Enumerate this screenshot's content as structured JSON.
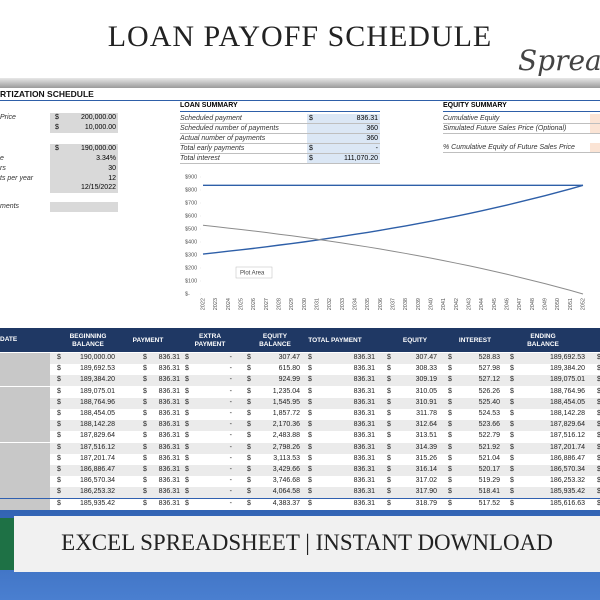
{
  "header": {
    "title": "LOAN PAYOFF SCHEDULE",
    "script": "Spread"
  },
  "section_title": "RTIZATION SCHEDULE",
  "currency": "$",
  "inputs": [
    {
      "label": "Price",
      "currency": true,
      "value": "200,000.00"
    },
    {
      "currency": true,
      "value": "10,000.00"
    },
    {
      "currency": true,
      "value": "190,000.00"
    },
    {
      "label": "e",
      "value": "3.34%"
    },
    {
      "label": "rs",
      "value": "30"
    },
    {
      "label": "ts per year",
      "value": "12"
    },
    {
      "value": "12/15/2022"
    },
    {
      "label": "ments"
    }
  ],
  "loan_summary": {
    "title": "LOAN SUMMARY",
    "rows": [
      {
        "label": "Scheduled payment",
        "currency": true,
        "value": "836.31"
      },
      {
        "label": "Scheduled number of payments",
        "value": "360"
      },
      {
        "label": "Actual number of payments",
        "value": "360"
      },
      {
        "label": "Total early payments",
        "currency": true,
        "value": "-"
      },
      {
        "label": "Total interest",
        "currency": true,
        "value": "111,070.20"
      }
    ]
  },
  "equity_summary": {
    "title": "EQUITY SUMMARY",
    "rows": [
      {
        "label": "Cumulative Equity"
      },
      {
        "label": "Simulated Future Sales Price (Optional)"
      },
      {
        "label": "% Cumulative Equity of Future Sales Price"
      }
    ]
  },
  "chart_data": {
    "type": "line",
    "annotation": "Plot Area",
    "categories": [
      "2022",
      "2023",
      "2024",
      "2025",
      "2026",
      "2027",
      "2028",
      "2029",
      "2030",
      "2031",
      "2032",
      "2033",
      "2034",
      "2035",
      "2036",
      "2037",
      "2038",
      "2039",
      "2040",
      "2041",
      "2042",
      "2043",
      "2044",
      "2045",
      "2046",
      "2047",
      "2048",
      "2049",
      "2050",
      "2051",
      "2052"
    ],
    "ylim": [
      0,
      900
    ],
    "yticks": [
      {
        "value": 0,
        "label": "$-"
      },
      {
        "value": 100,
        "label": "$100"
      },
      {
        "value": 200,
        "label": "$200"
      },
      {
        "value": 300,
        "label": "$300"
      },
      {
        "value": 400,
        "label": "$400"
      },
      {
        "value": 500,
        "label": "$500"
      },
      {
        "value": 600,
        "label": "$600"
      },
      {
        "value": 700,
        "label": "$700"
      },
      {
        "value": 800,
        "label": "$800"
      },
      {
        "value": 900,
        "label": "$900"
      }
    ],
    "series": [
      {
        "color": "#2e5fa8",
        "values": [
          836,
          836,
          836,
          836,
          836,
          836,
          836,
          836,
          836,
          836,
          836,
          836,
          836,
          836,
          836,
          836,
          836,
          836,
          836,
          836,
          836,
          836,
          836,
          836,
          836,
          836,
          836,
          836,
          836,
          836,
          836
        ]
      },
      {
        "color": "#2e5fa8",
        "values": [
          307,
          318,
          329,
          340,
          351,
          363,
          376,
          388,
          401,
          415,
          429,
          444,
          459,
          474,
          490,
          507,
          524,
          542,
          560,
          579,
          599,
          619,
          640,
          662,
          684,
          708,
          732,
          756,
          782,
          808,
          836
        ]
      },
      {
        "color": "#8c8c8c",
        "values": [
          529,
          518,
          507,
          496,
          485,
          473,
          460,
          448,
          435,
          421,
          407,
          392,
          377,
          362,
          346,
          329,
          312,
          294,
          276,
          257,
          237,
          217,
          196,
          174,
          152,
          128,
          104,
          80,
          54,
          28,
          0
        ]
      }
    ]
  },
  "table": {
    "columns": [
      "DATE",
      "BEGINNING BALANCE",
      "PAYMENT",
      "EXTRA PAYMENT",
      "EQUITY BALANCE",
      "TOTAL PAYMENT",
      "EQUITY",
      "INTEREST",
      "ENDING BALANCE"
    ],
    "rows": [
      [
        "190,000.00",
        "836.31",
        "-",
        "307.47",
        "836.31",
        "307.47",
        "528.83",
        "189,692.53"
      ],
      [
        "189,692.53",
        "836.31",
        "-",
        "615.80",
        "836.31",
        "308.33",
        "527.98",
        "189,384.20"
      ],
      [
        "189,384.20",
        "836.31",
        "-",
        "924.99",
        "836.31",
        "309.19",
        "527.12",
        "189,075.01"
      ],
      [
        "189,075.01",
        "836.31",
        "-",
        "1,235.04",
        "836.31",
        "310.05",
        "526.26",
        "188,764.96"
      ],
      [
        "188,764.96",
        "836.31",
        "-",
        "1,545.95",
        "836.31",
        "310.91",
        "525.40",
        "188,454.05"
      ],
      [
        "188,454.05",
        "836.31",
        "-",
        "1,857.72",
        "836.31",
        "311.78",
        "524.53",
        "188,142.28"
      ],
      [
        "188,142.28",
        "836.31",
        "-",
        "2,170.36",
        "836.31",
        "312.64",
        "523.66",
        "187,829.64"
      ],
      [
        "187,829.64",
        "836.31",
        "-",
        "2,483.88",
        "836.31",
        "313.51",
        "522.79",
        "187,516.12"
      ],
      [
        "187,516.12",
        "836.31",
        "-",
        "2,798.26",
        "836.31",
        "314.39",
        "521.92",
        "187,201.74"
      ],
      [
        "187,201.74",
        "836.31",
        "-",
        "3,113.53",
        "836.31",
        "315.26",
        "521.04",
        "186,886.47"
      ],
      [
        "186,886.47",
        "836.31",
        "-",
        "3,429.66",
        "836.31",
        "316.14",
        "520.17",
        "186,570.34"
      ],
      [
        "186,570.34",
        "836.31",
        "-",
        "3,746.68",
        "836.31",
        "317.02",
        "519.29",
        "186,253.32"
      ],
      [
        "186,253.32",
        "836.31",
        "-",
        "4,064.58",
        "836.31",
        "317.90",
        "518.41",
        "185,935.42"
      ],
      [
        "185,935.42",
        "836.31",
        "-",
        "4,383.37",
        "836.31",
        "318.79",
        "517.52",
        "185,616.63"
      ]
    ]
  },
  "banner": "EXCEL SPREADSHEET | INSTANT DOWNLOAD"
}
